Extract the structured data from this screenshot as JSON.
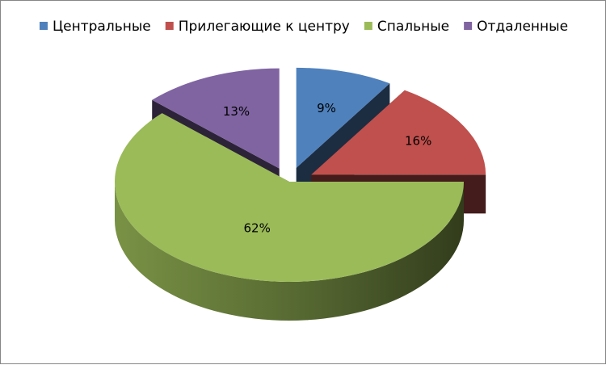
{
  "chart_data": {
    "type": "pie",
    "title": "",
    "three_d": true,
    "exploded": true,
    "legend_position": "top",
    "label_format": "percent",
    "categories": [
      "Центральные",
      "Прилегающие к центру",
      "Спальные",
      "Отдаленные"
    ],
    "values": [
      9,
      16,
      62,
      13
    ],
    "labels": [
      "9%",
      "16%",
      "62%",
      "13%"
    ],
    "colors": [
      "#4F81BD",
      "#C0504D",
      "#9BBB59",
      "#8064A2"
    ]
  }
}
